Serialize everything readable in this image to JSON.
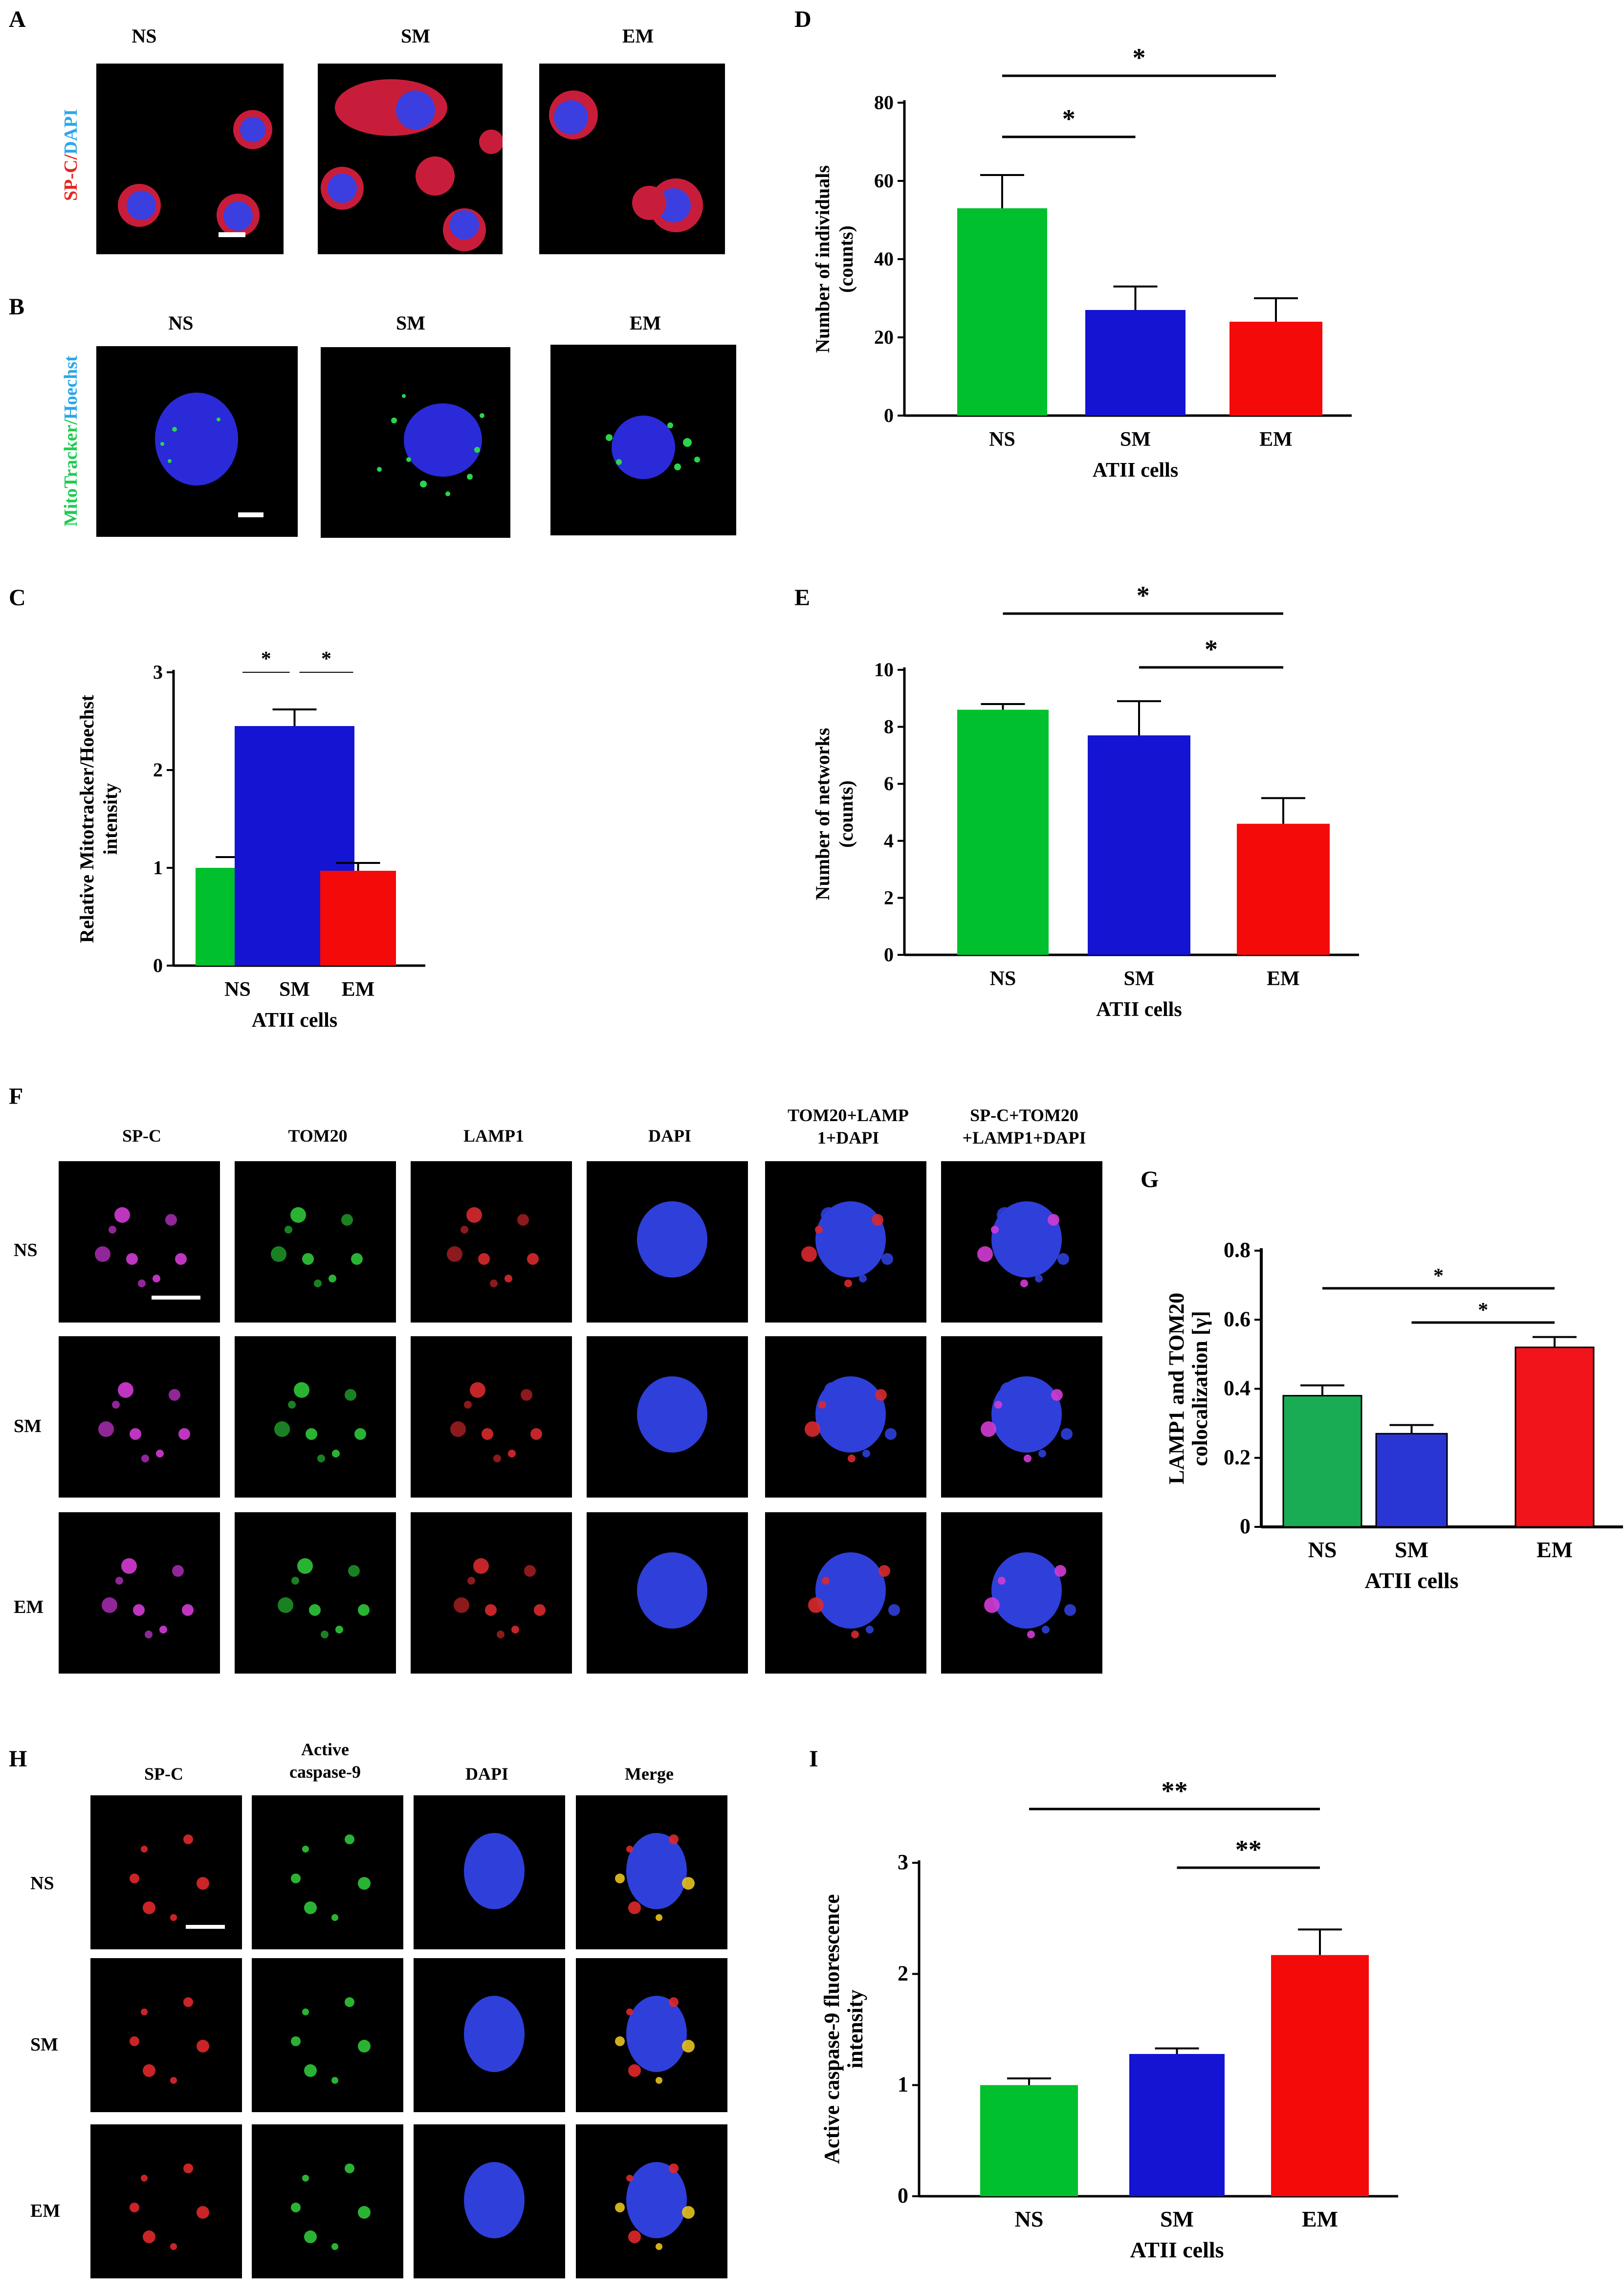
{
  "panel_letters": {
    "A": "A",
    "B": "B",
    "C": "C",
    "D": "D",
    "E": "E",
    "F": "F",
    "G": "G",
    "H": "H",
    "I": "I"
  },
  "groups": [
    "NS",
    "SM",
    "EM"
  ],
  "panel_a": {
    "stain_red": "SP-C/",
    "stain_blue": "DAPI"
  },
  "panel_b": {
    "stain_green": "MitoTracker/",
    "stain_blue": "Hoechst"
  },
  "panel_f": {
    "columns": [
      "SP-C",
      "TOM20",
      "LAMP1",
      "DAPI",
      "TOM20+LAMP\n1+DAPI",
      "SP-C+TOM20\n+LAMP1+DAPI"
    ]
  },
  "panel_h": {
    "columns": [
      "SP-C",
      "Active\ncaspase-9",
      "DAPI",
      "Merge"
    ]
  },
  "colors": {
    "NS": "#00c02d",
    "SM": "#1414d2",
    "EM": "#f50a0a",
    "G_NS": "#1aab55",
    "G_SM": "#2a36d4",
    "G_EM": "#f2141b"
  },
  "chart_data": [
    {
      "id": "C",
      "type": "bar",
      "categories": [
        "NS",
        "SM",
        "EM"
      ],
      "values": [
        1.0,
        2.45,
        0.97
      ],
      "errors": [
        0.11,
        0.17,
        0.08
      ],
      "xlabel": "ATII cells",
      "ylabel": "Relative Mitotracker/Hoechst\nintensity",
      "ylim": [
        0,
        3
      ],
      "yticks": [
        "0",
        "1",
        "2",
        "3"
      ],
      "significance": [
        {
          "from": "NS",
          "to": "SM",
          "label": "*"
        },
        {
          "from": "SM",
          "to": "EM",
          "label": "*"
        }
      ]
    },
    {
      "id": "D",
      "type": "bar",
      "categories": [
        "NS",
        "SM",
        "EM"
      ],
      "values": [
        53,
        27,
        24
      ],
      "errors": [
        8.5,
        6,
        6
      ],
      "xlabel": "ATII cells",
      "ylabel": "Number of individuals\n(counts)",
      "ylim": [
        0,
        80
      ],
      "yticks": [
        "0",
        "20",
        "40",
        "60",
        "80"
      ],
      "significance": [
        {
          "from": "NS",
          "to": "EM",
          "label": "*"
        },
        {
          "from": "NS",
          "to": "SM",
          "label": "*"
        }
      ]
    },
    {
      "id": "E",
      "type": "bar",
      "categories": [
        "NS",
        "SM",
        "EM"
      ],
      "values": [
        8.6,
        7.7,
        4.6
      ],
      "errors": [
        0.2,
        1.2,
        0.9
      ],
      "xlabel": "ATII cells",
      "ylabel": "Number of networks\n(counts)",
      "ylim": [
        0,
        10
      ],
      "yticks": [
        "0",
        "2",
        "4",
        "6",
        "8",
        "10"
      ],
      "significance": [
        {
          "from": "NS",
          "to": "EM",
          "label": "*"
        },
        {
          "from": "SM",
          "to": "EM",
          "label": "*"
        }
      ]
    },
    {
      "id": "G",
      "type": "bar",
      "categories": [
        "NS",
        "SM",
        "EM"
      ],
      "values": [
        0.38,
        0.27,
        0.52
      ],
      "errors": [
        0.03,
        0.025,
        0.03
      ],
      "xlabel": "ATII cells",
      "ylabel": "LAMP1 and TOM20\ncolocalization [γ]",
      "ylim": [
        0,
        0.8
      ],
      "yticks": [
        "0",
        "0.2",
        "0.4",
        "0.6",
        "0.8"
      ],
      "significance": [
        {
          "from": "NS",
          "to": "EM",
          "label": "*"
        },
        {
          "from": "SM",
          "to": "EM",
          "label": "*"
        }
      ]
    },
    {
      "id": "I",
      "type": "bar",
      "categories": [
        "NS",
        "SM",
        "EM"
      ],
      "values": [
        1.0,
        1.28,
        2.17
      ],
      "errors": [
        0.06,
        0.05,
        0.23
      ],
      "xlabel": "ATII cells",
      "ylabel": "Active caspase-9 fluorescence\nintensity",
      "ylim": [
        0,
        3
      ],
      "yticks": [
        "0",
        "1",
        "2",
        "3"
      ],
      "significance": [
        {
          "from": "NS",
          "to": "EM",
          "label": "**"
        },
        {
          "from": "SM",
          "to": "EM",
          "label": "**"
        }
      ]
    }
  ]
}
